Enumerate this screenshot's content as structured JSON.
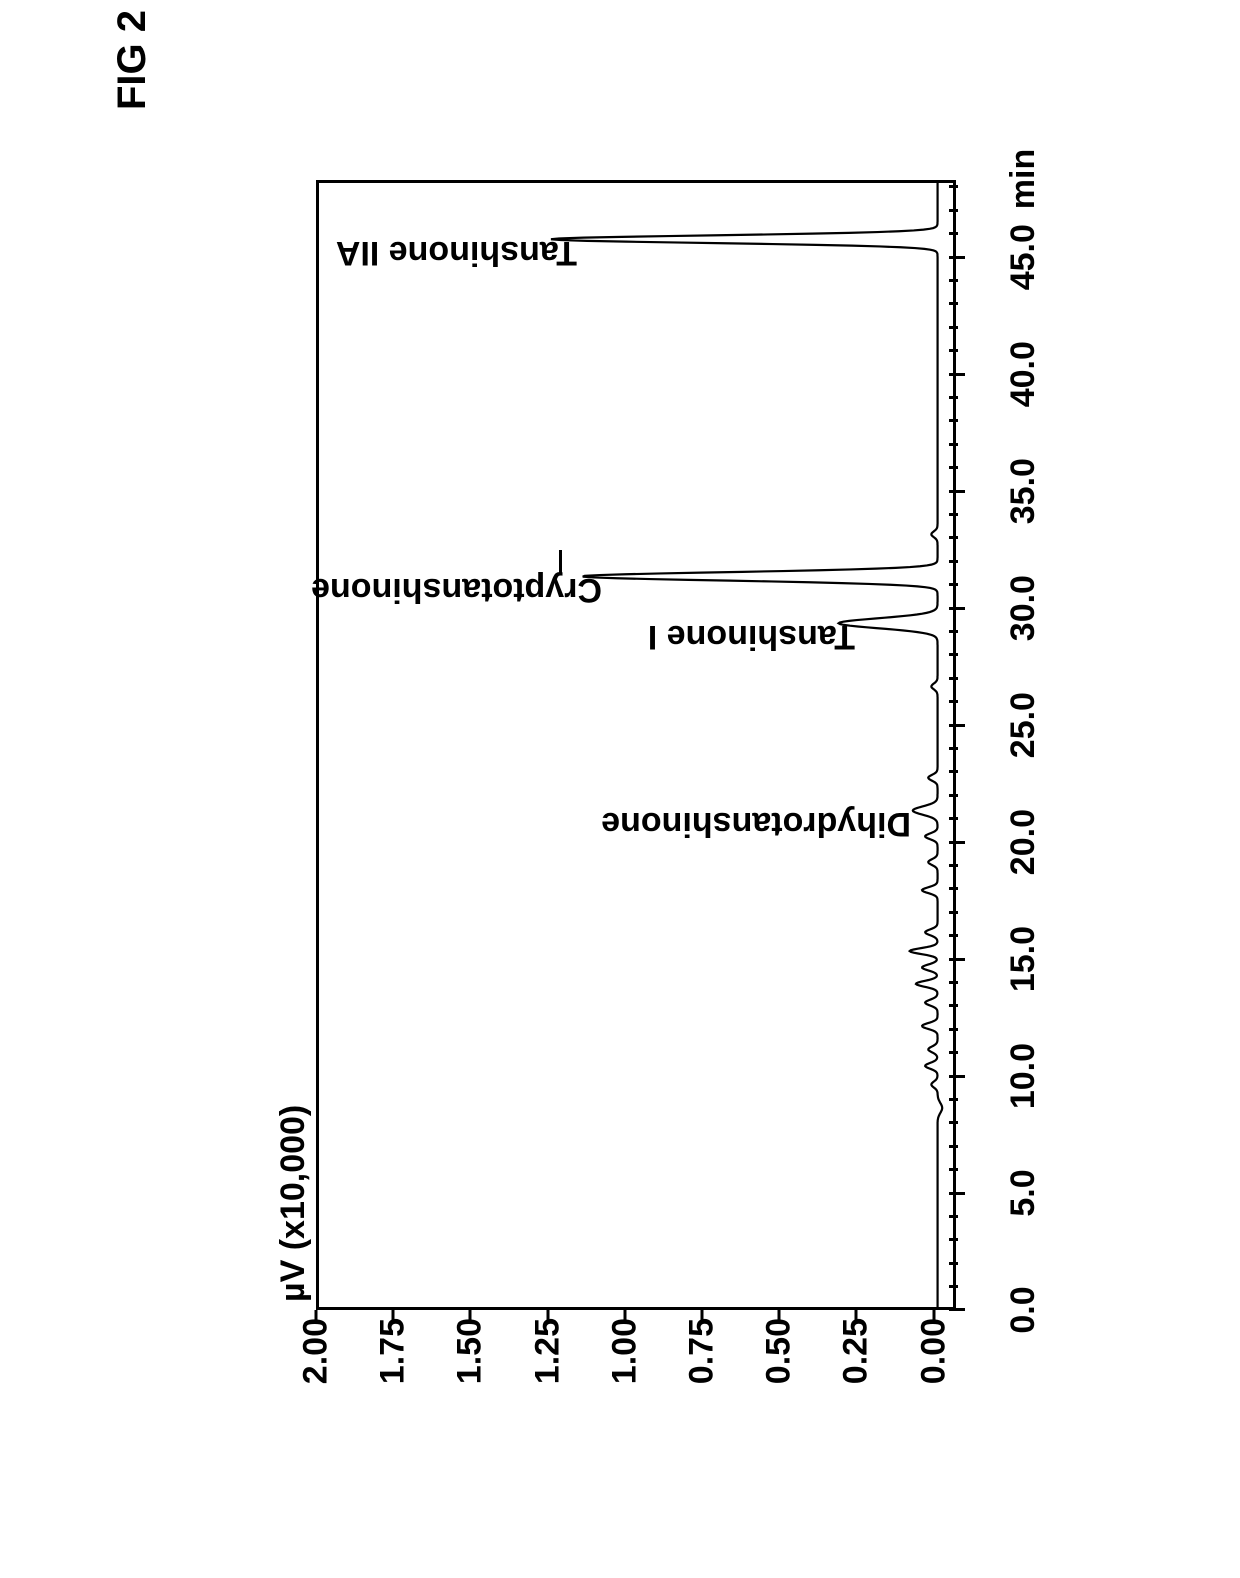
{
  "figure_label": "FIG 2",
  "chart": {
    "type": "line",
    "y_axis_title": "µV (x10,000)",
    "x_axis_unit": "min",
    "x_ticks": [
      0.0,
      5.0,
      10.0,
      15.0,
      20.0,
      25.0,
      30.0,
      35.0,
      40.0,
      45.0
    ],
    "x_tick_labels": [
      "0.0",
      "5.0",
      "10.0",
      "15.0",
      "20.0",
      "25.0",
      "30.0",
      "35.0",
      "40.0",
      "45.0"
    ],
    "x_minor_step": 1.0,
    "xlim": [
      0.0,
      48.0
    ],
    "y_ticks": [
      0.0,
      0.25,
      0.5,
      0.75,
      1.0,
      1.25,
      1.5,
      1.75,
      2.0
    ],
    "y_tick_labels": [
      "0.00",
      "0.25",
      "0.50",
      "0.75",
      "1.00",
      "1.25",
      "1.50",
      "1.75",
      "2.00"
    ],
    "ylim": [
      -0.05,
      2.0
    ],
    "line_color": "#000000",
    "line_width": 2.2,
    "background_color": "#ffffff",
    "peaks": [
      {
        "label": "Dihydrotanshinone",
        "x": 21.2,
        "height": 0.08,
        "width": 0.5,
        "label_y_offset": 0.2
      },
      {
        "label": "Tanshinone I",
        "x": 29.2,
        "height": 0.32,
        "width": 0.6,
        "label_y_offset": 0.38
      },
      {
        "label": "Cryptotanshinone",
        "x": 31.2,
        "height": 1.15,
        "width": 0.5,
        "label_y_offset": 1.2,
        "arrow": true
      },
      {
        "label": "Tanshinone IIA",
        "x": 45.6,
        "height": 1.25,
        "width": 0.45,
        "label_y_offset": 1.28
      }
    ],
    "noise": [
      {
        "x": 9.5,
        "h": 0.02
      },
      {
        "x": 10.3,
        "h": 0.04
      },
      {
        "x": 11.0,
        "h": 0.03
      },
      {
        "x": 12.0,
        "h": 0.05
      },
      {
        "x": 13.0,
        "h": 0.04
      },
      {
        "x": 13.8,
        "h": 0.07
      },
      {
        "x": 14.5,
        "h": 0.05
      },
      {
        "x": 15.2,
        "h": 0.09
      },
      {
        "x": 16.0,
        "h": 0.04
      },
      {
        "x": 17.8,
        "h": 0.05
      },
      {
        "x": 19.0,
        "h": 0.03
      },
      {
        "x": 20.1,
        "h": 0.04
      },
      {
        "x": 22.6,
        "h": 0.03
      },
      {
        "x": 26.5,
        "h": 0.02
      },
      {
        "x": 33.0,
        "h": 0.02
      }
    ],
    "colors": {
      "axis": "#000000",
      "text": "#000000",
      "background": "#ffffff"
    },
    "fontsize": {
      "tick": 34,
      "label": 34,
      "title": 34
    }
  }
}
